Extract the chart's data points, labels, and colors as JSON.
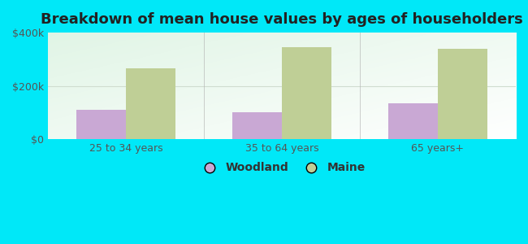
{
  "title": "Breakdown of mean house values by ages of householders",
  "categories": [
    "25 to 34 years",
    "35 to 64 years",
    "65 years+"
  ],
  "woodland_values": [
    110000,
    100000,
    135000
  ],
  "maine_values": [
    265000,
    345000,
    338000
  ],
  "woodland_color": "#c9a8d4",
  "maine_color": "#bfcf96",
  "background_color": "#00e8f8",
  "ylim": [
    0,
    400000
  ],
  "yticks": [
    0,
    200000,
    400000
  ],
  "ytick_labels": [
    "$0",
    "$200k",
    "$400k"
  ],
  "legend_labels": [
    "Woodland",
    "Maine"
  ],
  "bar_width": 0.32,
  "title_fontsize": 13,
  "tick_fontsize": 9,
  "legend_fontsize": 10,
  "grid_color": "#e0ede0",
  "separator_color": "#b0b0b0"
}
